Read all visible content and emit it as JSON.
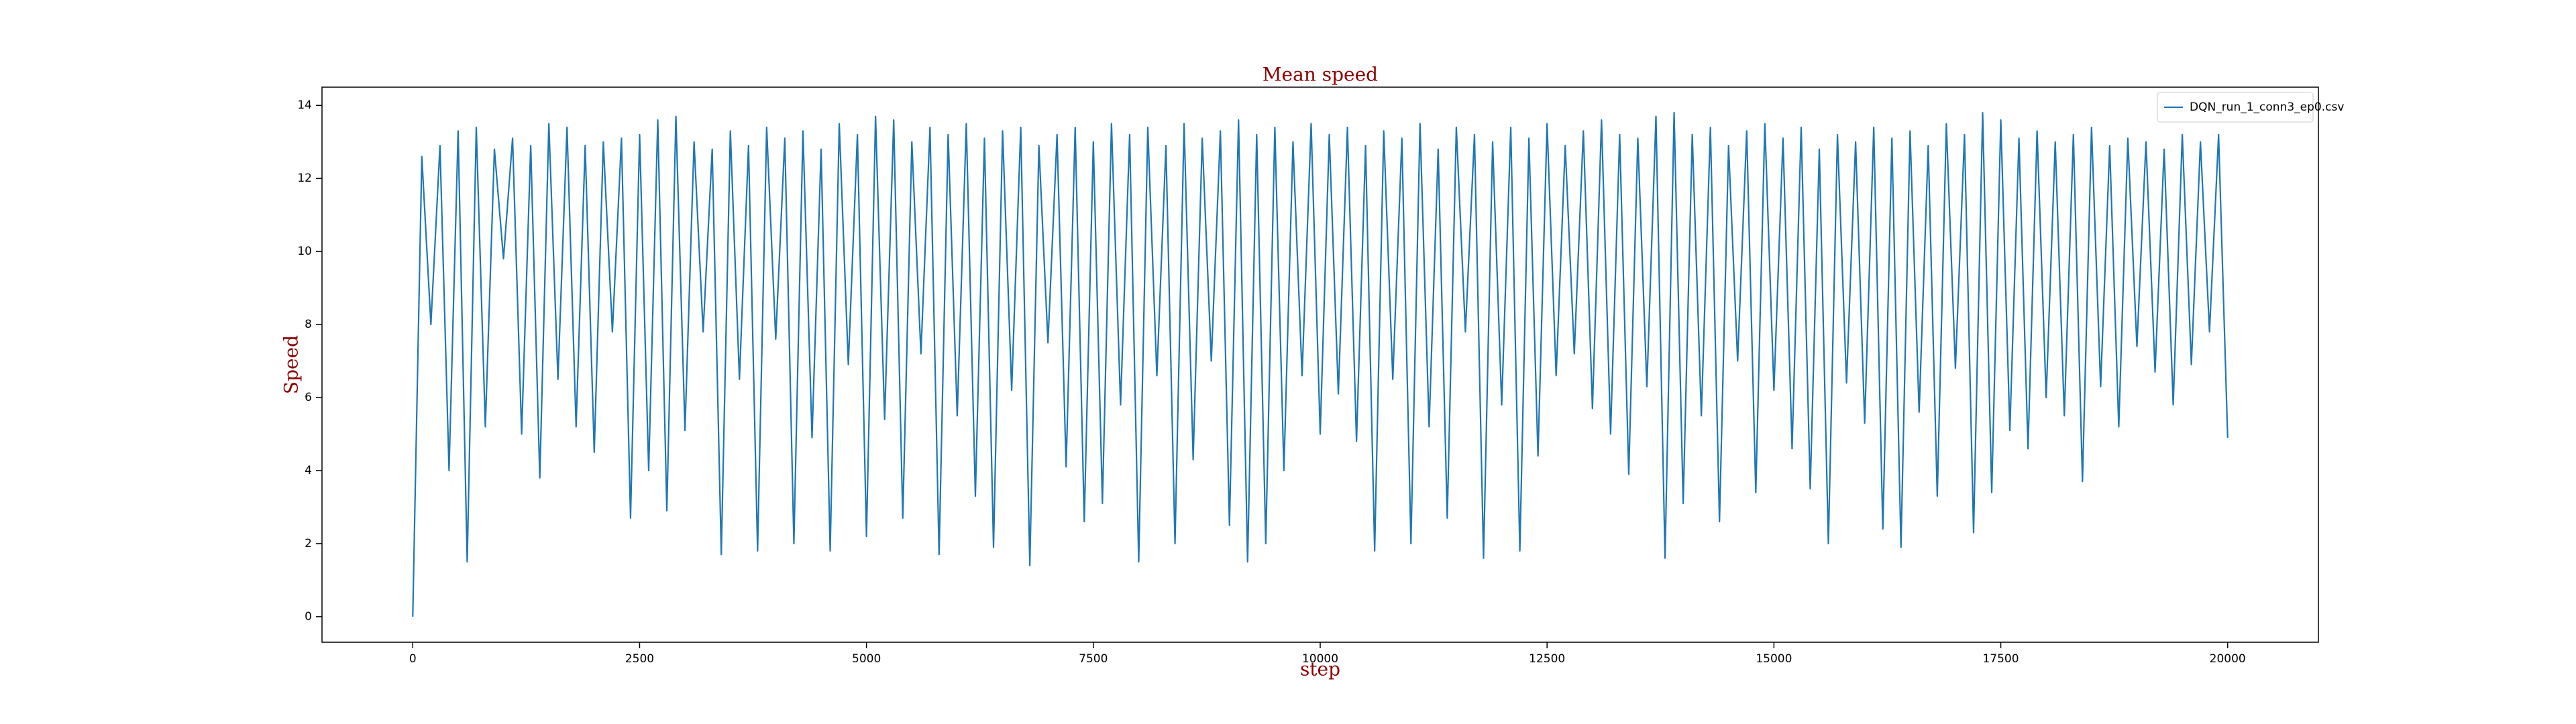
{
  "chart_data": {
    "type": "line",
    "title": "Mean speed",
    "x_label": "step",
    "y_label": "Speed",
    "x": [
      0,
      100,
      200,
      300,
      400,
      500,
      600,
      700,
      800,
      900,
      1000,
      1100,
      1200,
      1300,
      1400,
      1500,
      1600,
      1700,
      1800,
      1900,
      2000,
      2100,
      2200,
      2300,
      2400,
      2500,
      2600,
      2700,
      2800,
      2900,
      3000,
      3100,
      3200,
      3300,
      3400,
      3500,
      3600,
      3700,
      3800,
      3900,
      4000,
      4100,
      4200,
      4300,
      4400,
      4500,
      4600,
      4700,
      4800,
      4900,
      5000,
      5100,
      5200,
      5300,
      5400,
      5500,
      5600,
      5700,
      5800,
      5900,
      6000,
      6100,
      6200,
      6300,
      6400,
      6500,
      6600,
      6700,
      6800,
      6900,
      7000,
      7100,
      7200,
      7300,
      7400,
      7500,
      7600,
      7700,
      7800,
      7900,
      8000,
      8100,
      8200,
      8300,
      8400,
      8500,
      8600,
      8700,
      8800,
      8900,
      9000,
      9100,
      9200,
      9300,
      9400,
      9500,
      9600,
      9700,
      9800,
      9900,
      10000,
      10100,
      10200,
      10300,
      10400,
      10500,
      10600,
      10700,
      10800,
      10900,
      11000,
      11100,
      11200,
      11300,
      11400,
      11500,
      11600,
      11700,
      11800,
      11900,
      12000,
      12100,
      12200,
      12300,
      12400,
      12500,
      12600,
      12700,
      12800,
      12900,
      13000,
      13100,
      13200,
      13300,
      13400,
      13500,
      13600,
      13700,
      13800,
      13900,
      14000,
      14100,
      14200,
      14300,
      14400,
      14500,
      14600,
      14700,
      14800,
      14900,
      15000,
      15100,
      15200,
      15300,
      15400,
      15500,
      15600,
      15700,
      15800,
      15900,
      16000,
      16100,
      16200,
      16300,
      16400,
      16500,
      16600,
      16700,
      16800,
      16900,
      17000,
      17100,
      17200,
      17300,
      17400,
      17500,
      17600,
      17700,
      17800,
      17900,
      18000,
      18100,
      18200,
      18300,
      18400,
      18500,
      18600,
      18700,
      18800,
      18900,
      19000,
      19100,
      19200,
      19300,
      19400,
      19500,
      19600,
      19700,
      19800,
      19900,
      20000
    ],
    "series": [
      {
        "name": "DQN_run_1_conn3_ep0.csv",
        "color": "#1f77b4",
        "values": [
          0,
          12.6,
          8.0,
          12.9,
          4.0,
          13.3,
          1.5,
          13.4,
          5.2,
          12.8,
          9.8,
          13.1,
          5.0,
          12.9,
          3.8,
          13.5,
          6.5,
          13.4,
          5.2,
          12.9,
          4.5,
          13.0,
          7.8,
          13.1,
          2.7,
          13.2,
          4.0,
          13.6,
          2.9,
          13.7,
          5.1,
          13.0,
          7.8,
          12.8,
          1.7,
          13.3,
          6.5,
          12.9,
          1.8,
          13.4,
          7.6,
          13.1,
          2.0,
          13.3,
          4.9,
          12.8,
          1.8,
          13.5,
          6.9,
          13.2,
          2.2,
          13.7,
          5.4,
          13.6,
          2.7,
          13.0,
          7.2,
          13.4,
          1.7,
          13.2,
          5.5,
          13.5,
          3.3,
          13.1,
          1.9,
          13.3,
          6.2,
          13.4,
          1.4,
          12.9,
          7.5,
          13.2,
          4.1,
          13.4,
          2.6,
          13.0,
          3.1,
          13.5,
          5.8,
          13.2,
          1.5,
          13.4,
          6.6,
          12.9,
          2.0,
          13.5,
          4.3,
          13.1,
          7.0,
          13.3,
          2.5,
          13.6,
          1.5,
          13.2,
          2.0,
          13.4,
          4.0,
          13.0,
          6.6,
          13.5,
          5.0,
          13.2,
          6.1,
          13.4,
          4.8,
          12.9,
          1.8,
          13.3,
          6.5,
          13.1,
          2.0,
          13.5,
          5.2,
          12.8,
          2.7,
          13.4,
          7.8,
          13.2,
          1.6,
          13.0,
          5.8,
          13.4,
          1.8,
          13.1,
          4.4,
          13.5,
          6.6,
          12.9,
          7.2,
          13.3,
          5.7,
          13.6,
          5.0,
          13.2,
          3.9,
          13.1,
          6.3,
          13.7,
          1.6,
          13.8,
          3.1,
          13.2,
          5.5,
          13.4,
          2.6,
          12.9,
          7.0,
          13.3,
          3.4,
          13.5,
          6.2,
          13.1,
          4.6,
          13.4,
          3.5,
          12.8,
          2.0,
          13.2,
          6.4,
          13.0,
          5.3,
          13.4,
          2.4,
          13.1,
          1.9,
          13.3,
          5.6,
          12.9,
          3.3,
          13.5,
          6.8,
          13.2,
          2.3,
          13.8,
          3.4,
          13.6,
          5.1,
          13.1,
          4.6,
          13.3,
          6.0,
          13.0,
          5.5,
          13.2,
          3.7,
          13.4,
          6.3,
          12.9,
          5.2,
          13.1,
          7.4,
          13.0,
          6.7,
          12.8,
          5.8,
          13.2,
          6.9,
          13.0,
          7.8,
          13.2,
          4.9
        ]
      }
    ],
    "xlim": [
      -1000,
      21000
    ],
    "ylim": [
      -0.7,
      14.5
    ],
    "xticks": [
      0,
      2500,
      5000,
      7500,
      10000,
      12500,
      15000,
      17500,
      20000
    ],
    "yticks": [
      0,
      2,
      4,
      6,
      8,
      10,
      12,
      14
    ],
    "legend": "upper right"
  }
}
